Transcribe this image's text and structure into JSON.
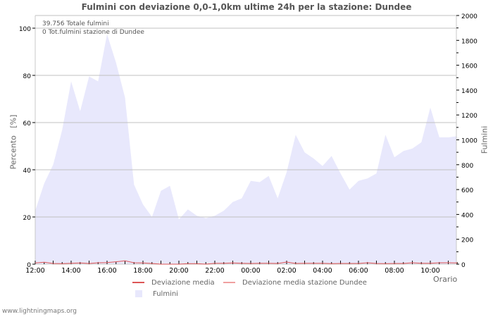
{
  "title": "Fulmini con deviazione 0,0-1,0km ultime 24h per la stazione: Dundee",
  "annotations": {
    "total": "39.756 Totale fulmini",
    "station_total": "0 Tot.fulmini stazione di Dundee"
  },
  "axes": {
    "left_label": "Percento   [%]",
    "right_label": "Fulmini",
    "x_label": "Orario"
  },
  "legend": {
    "items": [
      {
        "label": "Deviazione media",
        "color": "#dd5555"
      },
      {
        "label": "Deviazione media stazione Dundee",
        "color": "#f0a0a0"
      },
      {
        "label": "Fulmini",
        "color": "#e8e8fc"
      }
    ]
  },
  "footer": "www.lightningmaps.org",
  "chart_data": {
    "type": "area",
    "title": "Fulmini con deviazione 0,0-1,0km ultime 24h per la stazione: Dundee",
    "xlabel": "Orario",
    "ylabel": "Percento [%]",
    "ylabel_right": "Fulmini",
    "ylim": [
      0,
      105
    ],
    "ylim_right": [
      0,
      2000
    ],
    "y_ticks": [
      "0",
      "20",
      "40",
      "60",
      "80",
      "100"
    ],
    "y_ticks_right": [
      "0",
      "200",
      "400",
      "600",
      "800",
      "1000",
      "1200",
      "1400",
      "1600",
      "1800",
      "2000"
    ],
    "x_ticks": [
      "12:00",
      "14:00",
      "16:00",
      "18:00",
      "20:00",
      "22:00",
      "00:00",
      "02:00",
      "04:00",
      "06:00",
      "08:00",
      "10:00"
    ],
    "grid": true,
    "x": [
      "12:00",
      "12:30",
      "13:00",
      "13:30",
      "14:00",
      "14:30",
      "15:00",
      "15:30",
      "16:00",
      "16:30",
      "17:00",
      "17:30",
      "18:00",
      "18:30",
      "19:00",
      "19:30",
      "20:00",
      "20:30",
      "21:00",
      "21:30",
      "22:00",
      "22:30",
      "23:00",
      "23:30",
      "00:00",
      "00:30",
      "01:00",
      "01:30",
      "02:00",
      "02:30",
      "03:00",
      "03:30",
      "04:00",
      "04:30",
      "05:00",
      "05:30",
      "06:00",
      "06:30",
      "07:00",
      "07:30",
      "08:00",
      "08:30",
      "09:00",
      "09:30",
      "10:00",
      "10:30",
      "11:00",
      "11:30"
    ],
    "series": [
      {
        "name": "Fulmini",
        "axis": "right",
        "color": "#e8e8fc",
        "values": [
          430,
          650,
          800,
          1080,
          1470,
          1230,
          1510,
          1470,
          1850,
          1620,
          1340,
          640,
          480,
          380,
          590,
          630,
          360,
          440,
          390,
          370,
          390,
          430,
          500,
          530,
          670,
          660,
          710,
          530,
          740,
          1040,
          900,
          850,
          790,
          870,
          730,
          600,
          670,
          690,
          730,
          1040,
          860,
          910,
          930,
          980,
          1260,
          1020,
          1020,
          1030
        ]
      },
      {
        "name": "Deviazione media",
        "axis": "left",
        "color": "#dd5555",
        "values": [
          0.5,
          0.8,
          0.3,
          0.2,
          0.4,
          0.5,
          0.3,
          0.6,
          0.7,
          1.0,
          1.4,
          0.6,
          0.5,
          0.3,
          0,
          0,
          0,
          0.2,
          0.2,
          0,
          0.4,
          0.4,
          0.5,
          0.4,
          0.3,
          0.4,
          0.4,
          0.3,
          0.9,
          0.3,
          0.4,
          0.4,
          0.4,
          0.2,
          0.3,
          0.3,
          0.3,
          0.6,
          0.3,
          0.2,
          0.3,
          0.3,
          0.6,
          0.4,
          0.4,
          0.6,
          0.6,
          0.5
        ]
      },
      {
        "name": "Deviazione media stazione Dundee",
        "axis": "left",
        "color": "#f0a0a0",
        "values": []
      }
    ]
  }
}
